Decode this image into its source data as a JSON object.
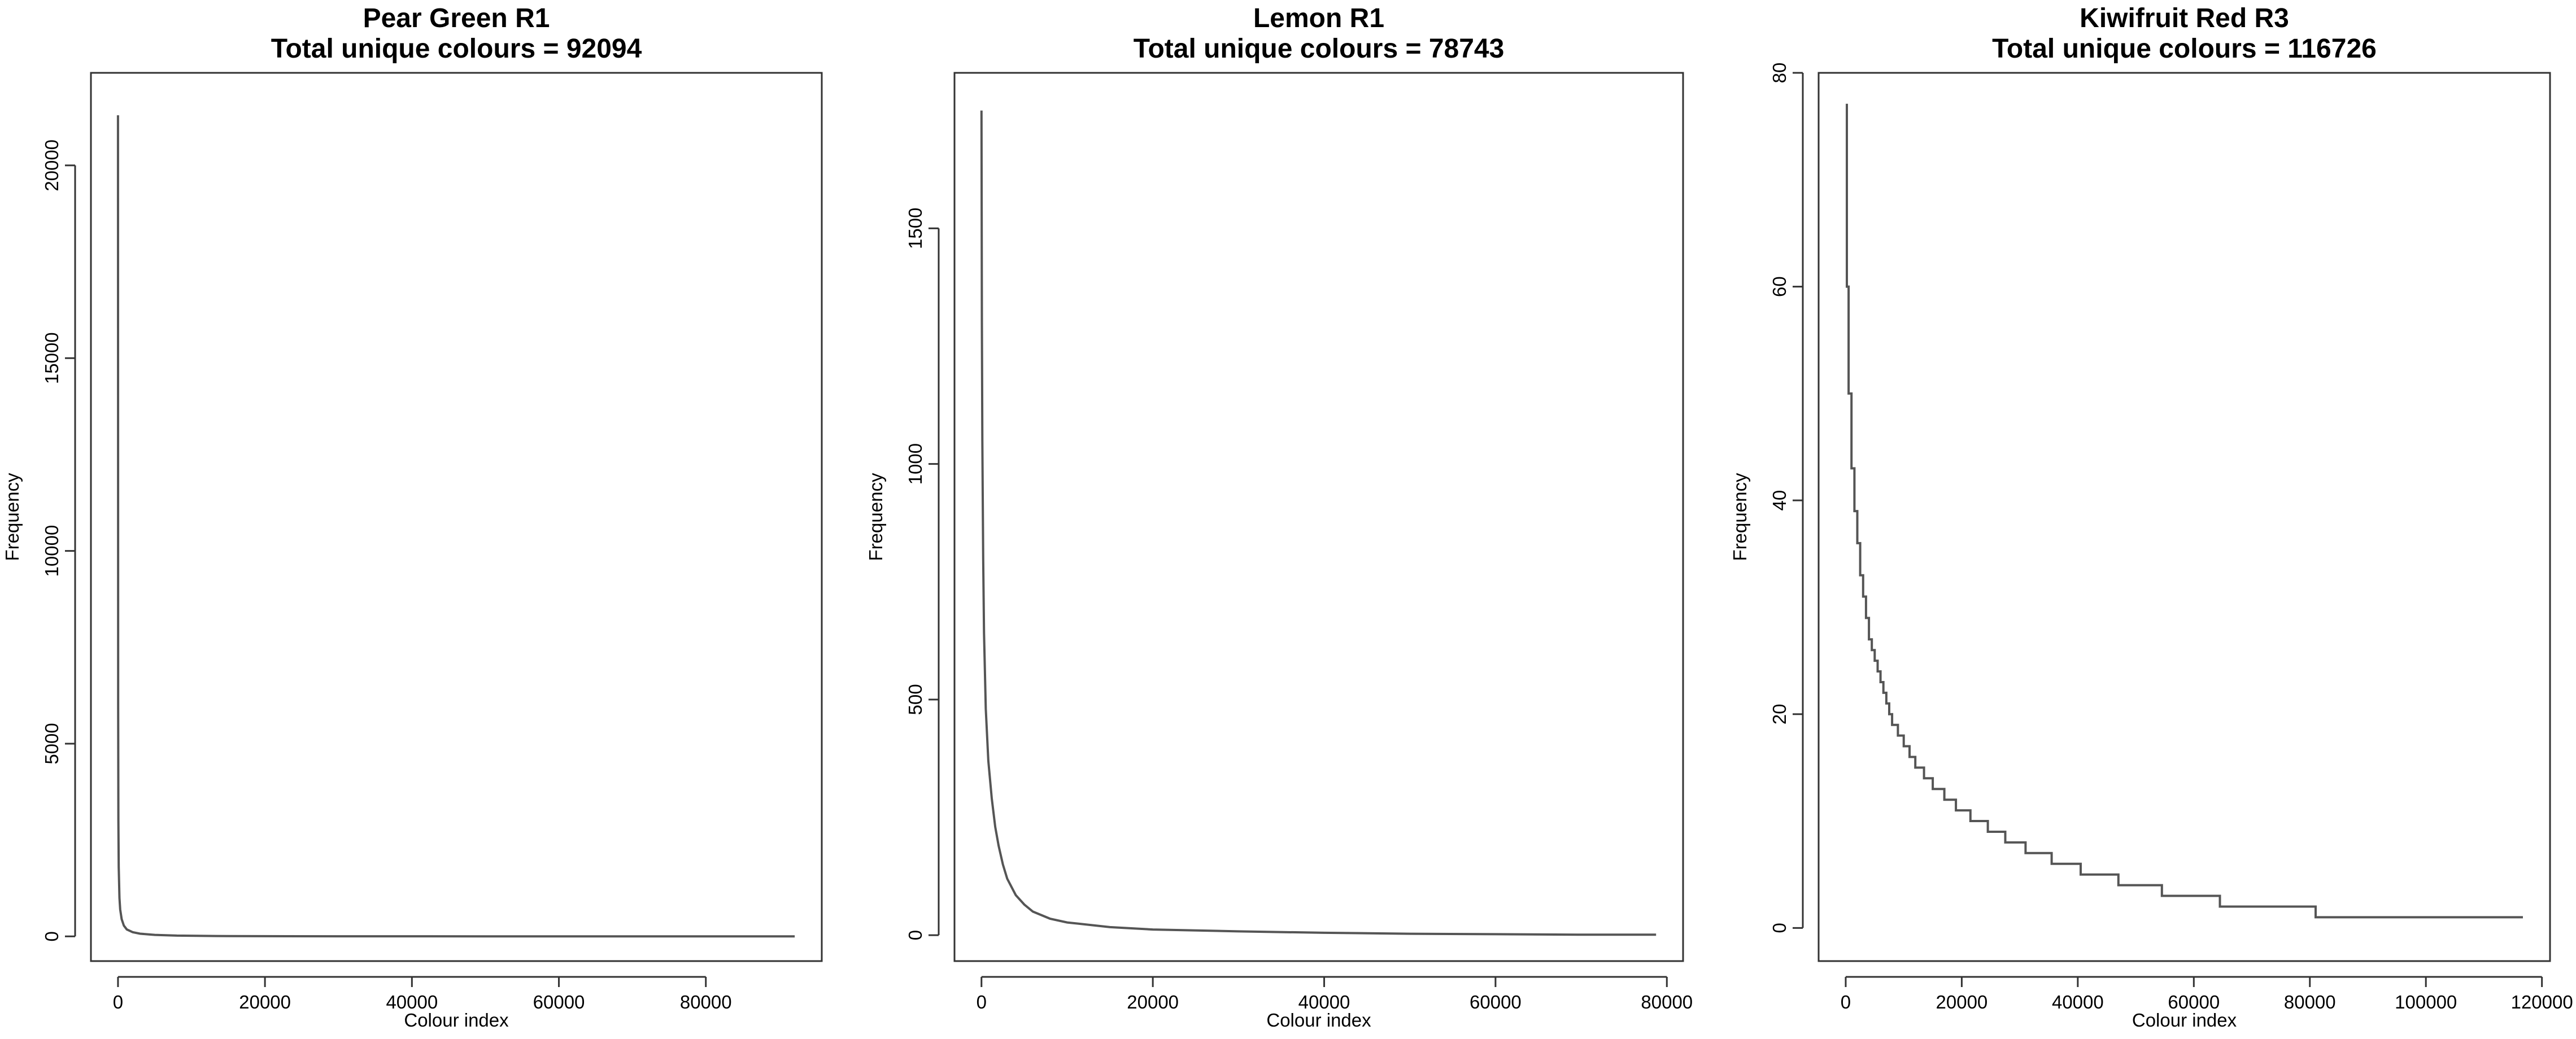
{
  "chart_data": [
    {
      "type": "line",
      "title": "Pear Green R1",
      "subtitle": "Total unique colours = 92094",
      "xlabel": "Colour index",
      "ylabel": "Frequency",
      "xlim": [
        0,
        92094
      ],
      "ylim": [
        0,
        21400
      ],
      "xticks": [
        0,
        20000,
        40000,
        60000,
        80000
      ],
      "yticks": [
        0,
        5000,
        10000,
        15000,
        20000
      ],
      "grid": false,
      "step": false,
      "series": [
        {
          "color": "#555555",
          "x": [
            1,
            20,
            50,
            100,
            200,
            300,
            500,
            800,
            1200,
            2000,
            3000,
            5000,
            8000,
            15000,
            30000,
            50000,
            70000,
            92094
          ],
          "y": [
            21300,
            6000,
            3000,
            1800,
            1000,
            700,
            450,
            280,
            180,
            110,
            70,
            40,
            20,
            8,
            3,
            1,
            1,
            1
          ]
        }
      ]
    },
    {
      "type": "line",
      "title": "Lemon R1",
      "subtitle": "Total unique colours = 78743",
      "xlabel": "Colour index",
      "ylabel": "Frequency",
      "xlim": [
        0,
        78743
      ],
      "ylim": [
        0,
        1760
      ],
      "xticks": [
        0,
        20000,
        40000,
        60000,
        80000
      ],
      "yticks": [
        0,
        500,
        1000,
        1500
      ],
      "grid": false,
      "step": false,
      "series": [
        {
          "color": "#555555",
          "x": [
            1,
            50,
            100,
            200,
            300,
            500,
            800,
            1200,
            1600,
            2000,
            2500,
            3000,
            4000,
            5000,
            6000,
            8000,
            10000,
            15000,
            20000,
            30000,
            40000,
            50000,
            60000,
            70000,
            78743
          ],
          "y": [
            1750,
            1300,
            1050,
            800,
            640,
            480,
            370,
            290,
            230,
            190,
            150,
            120,
            85,
            65,
            50,
            35,
            27,
            17,
            12,
            8,
            5,
            3,
            2,
            1,
            1
          ]
        }
      ]
    },
    {
      "type": "line",
      "title": "Kiwifruit Red R3",
      "subtitle": "Total unique colours = 116726",
      "xlabel": "Colour index",
      "ylabel": "Frequency",
      "xlim": [
        0,
        116726
      ],
      "ylim": [
        0,
        77
      ],
      "xticks": [
        0,
        20000,
        40000,
        60000,
        80000,
        100000,
        120000
      ],
      "yticks": [
        0,
        20,
        40,
        60,
        80
      ],
      "grid": false,
      "step": true,
      "series": [
        {
          "color": "#555555",
          "x": [
            1,
            200,
            500,
            1000,
            1500,
            2000,
            2500,
            3000,
            3500,
            4000,
            4500,
            5000,
            5500,
            6000,
            6500,
            7000,
            7500,
            8000,
            9000,
            10000,
            11000,
            12000,
            13500,
            15000,
            17000,
            19000,
            21500,
            24500,
            27500,
            31000,
            35500,
            40500,
            47000,
            54500,
            64500,
            81000,
            116726
          ],
          "y": [
            77,
            60,
            50,
            43,
            39,
            36,
            33,
            31,
            29,
            27,
            26,
            25,
            24,
            23,
            22,
            21,
            20,
            19,
            18,
            17,
            16,
            15,
            14,
            13,
            12,
            11,
            10,
            9,
            8,
            7,
            6,
            5,
            4,
            3,
            2,
            1,
            1
          ]
        }
      ]
    }
  ]
}
